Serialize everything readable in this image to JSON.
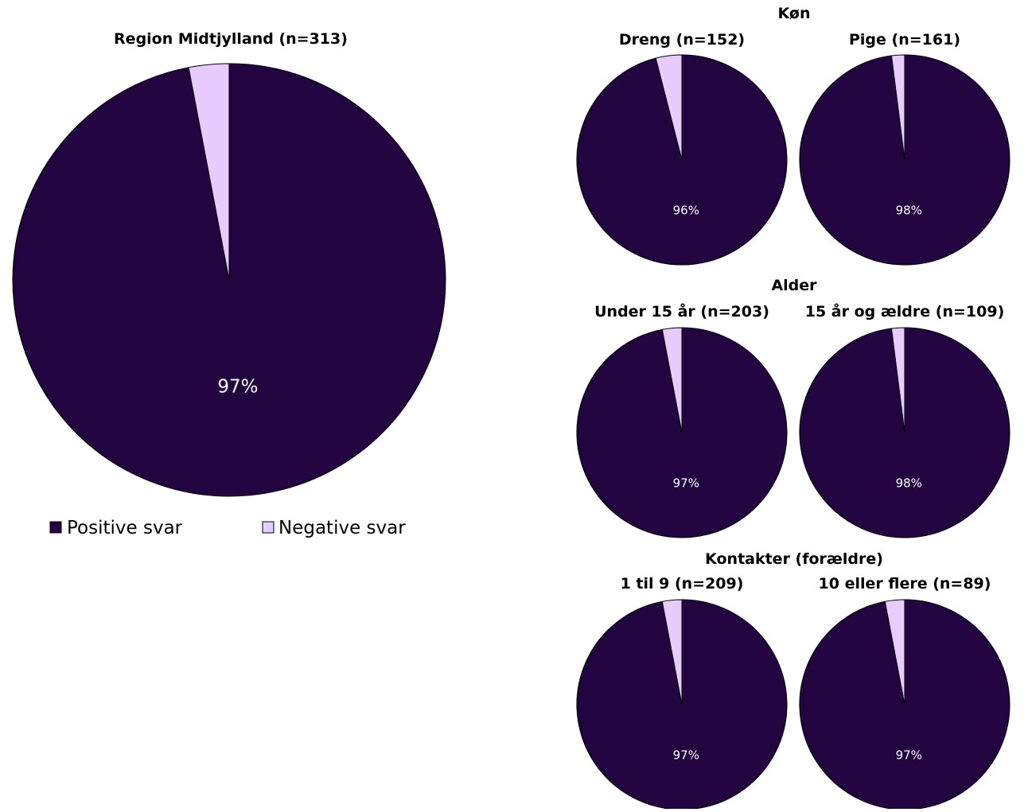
{
  "colors": {
    "positive": "#220440",
    "negative": "#e8ccff",
    "outline": "#000000",
    "label_on_dark": "#ffffff"
  },
  "legend": {
    "placement": "below-main-chart",
    "items": [
      {
        "label": "Positive svar",
        "color": "#220440"
      },
      {
        "label": "Negative svar",
        "color": "#e8ccff"
      }
    ]
  },
  "group_titles": {
    "kon": "Køn",
    "alder": "Alder",
    "kontakter": "Kontakter (forældre)"
  },
  "chart_data": [
    {
      "type": "pie",
      "title": "Region Midtjylland (n=313)",
      "categories": [
        "Positive svar",
        "Negative svar"
      ],
      "values": [
        97,
        3
      ],
      "data_labels": [
        "97%",
        ""
      ]
    },
    {
      "type": "pie",
      "group": "Køn",
      "title": "Dreng (n=152)",
      "categories": [
        "Positive svar",
        "Negative svar"
      ],
      "values": [
        96,
        4
      ],
      "data_labels": [
        "96%",
        ""
      ]
    },
    {
      "type": "pie",
      "group": "Køn",
      "title": "Pige (n=161)",
      "categories": [
        "Positive svar",
        "Negative svar"
      ],
      "values": [
        98,
        2
      ],
      "data_labels": [
        "98%",
        ""
      ]
    },
    {
      "type": "pie",
      "group": "Alder",
      "title": "Under 15 år (n=203)",
      "categories": [
        "Positive svar",
        "Negative svar"
      ],
      "values": [
        97,
        3
      ],
      "data_labels": [
        "97%",
        ""
      ]
    },
    {
      "type": "pie",
      "group": "Alder",
      "title": "15 år og ældre (n=109)",
      "categories": [
        "Positive svar",
        "Negative svar"
      ],
      "values": [
        98,
        2
      ],
      "data_labels": [
        "98%",
        ""
      ]
    },
    {
      "type": "pie",
      "group": "Kontakter (forældre)",
      "title": "1 til 9 (n=209)",
      "categories": [
        "Positive svar",
        "Negative svar"
      ],
      "values": [
        97,
        3
      ],
      "data_labels": [
        "97%",
        ""
      ]
    },
    {
      "type": "pie",
      "group": "Kontakter (forældre)",
      "title": "10 eller flere (n=89)",
      "categories": [
        "Positive svar",
        "Negative svar"
      ],
      "values": [
        97,
        3
      ],
      "data_labels": [
        "97%",
        ""
      ]
    }
  ]
}
